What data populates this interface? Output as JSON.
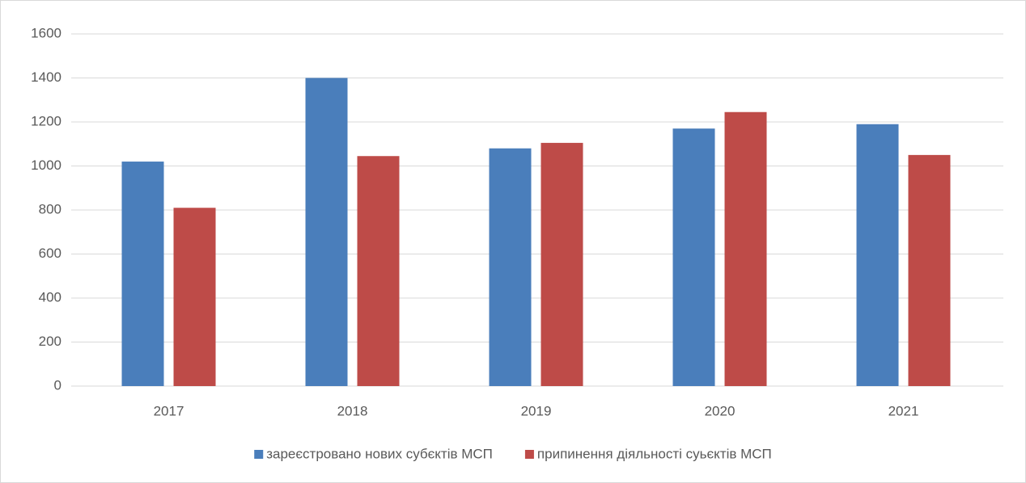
{
  "chart_data": {
    "type": "bar",
    "categories": [
      "2017",
      "2018",
      "2019",
      "2020",
      "2021"
    ],
    "series": [
      {
        "name": "зареєстровано нових субєктів МСП",
        "color": "#4a7ebb",
        "values": [
          1020,
          1400,
          1080,
          1170,
          1190
        ]
      },
      {
        "name": "припинення діяльності суьєктів МСП",
        "color": "#be4b48",
        "values": [
          810,
          1045,
          1105,
          1245,
          1050
        ]
      }
    ],
    "ylim": [
      0,
      1600
    ],
    "yticks": [
      0,
      200,
      400,
      600,
      800,
      1000,
      1200,
      1400,
      1600
    ],
    "grid": true,
    "legend": "bottom"
  }
}
